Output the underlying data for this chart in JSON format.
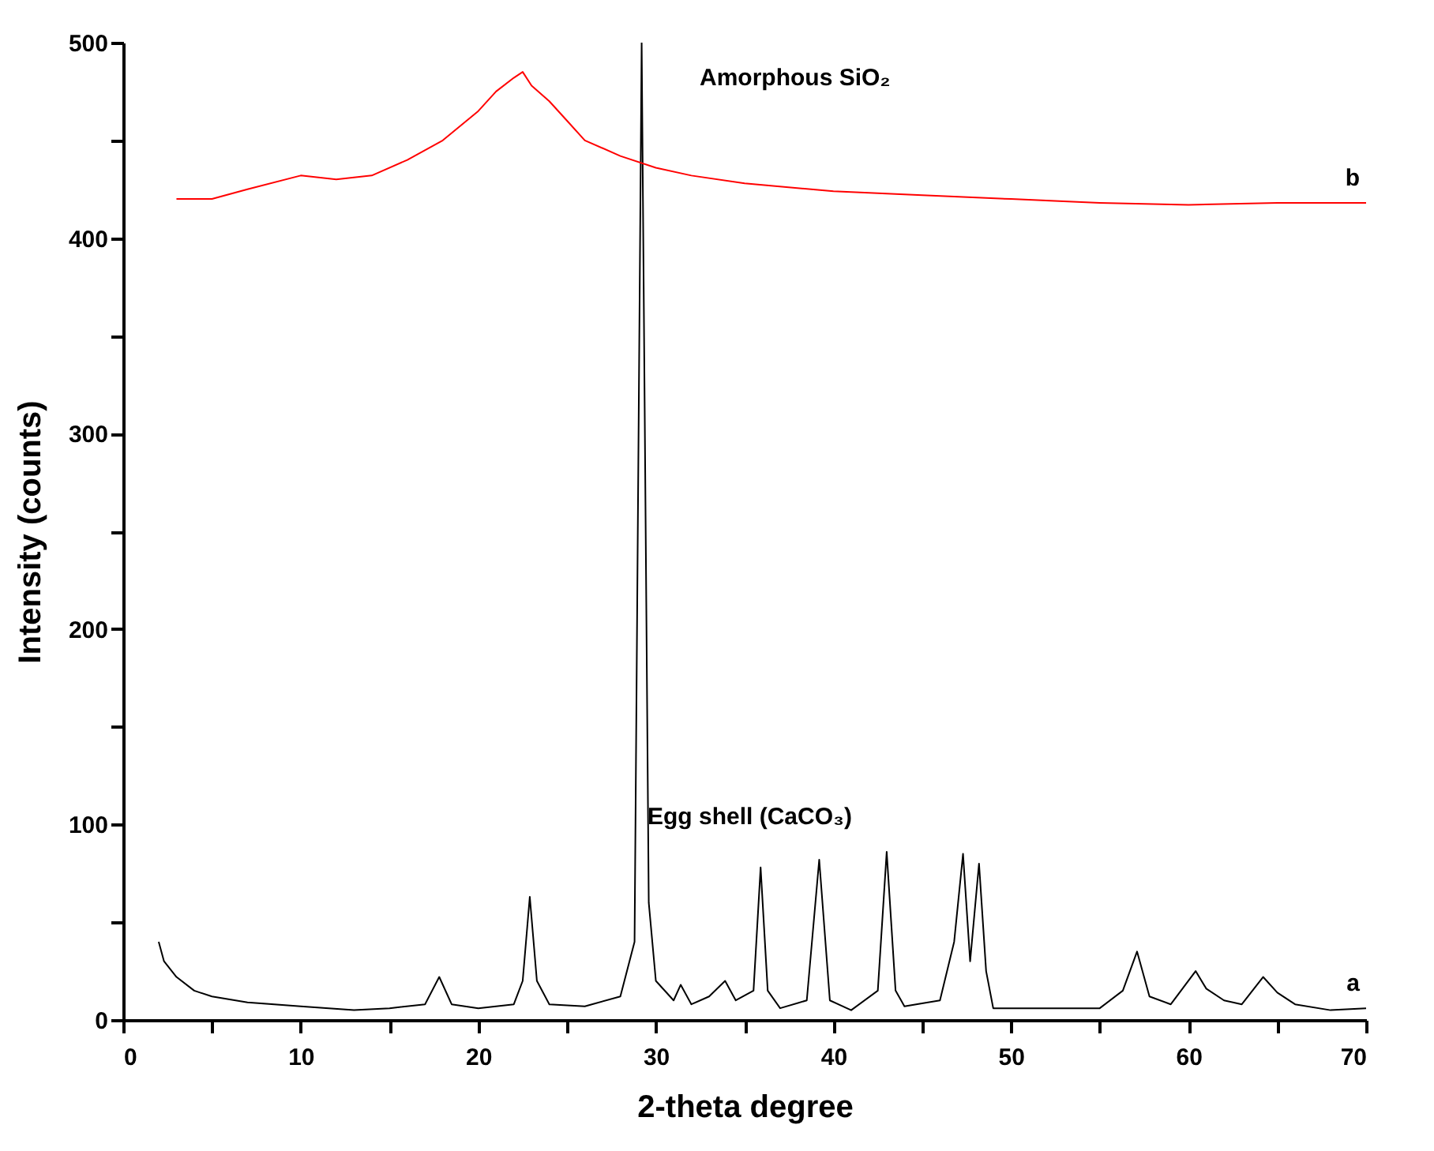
{
  "chart_data": {
    "type": "line",
    "xlabel": "2-theta degree",
    "ylabel": "Intensity (counts)",
    "xlim": [
      0,
      70
    ],
    "ylim": [
      0,
      500
    ],
    "xticks": [
      0,
      {
        "value": 5,
        "label": null
      },
      10,
      {
        "value": 15,
        "label": null
      },
      20,
      {
        "value": 25,
        "label": null
      },
      30,
      {
        "value": 35,
        "label": null
      },
      40,
      {
        "value": 45,
        "label": null
      },
      50,
      {
        "value": 55,
        "label": null
      },
      60,
      {
        "value": 65,
        "label": null
      },
      70
    ],
    "yticks": [
      0,
      {
        "value": 50,
        "label": null
      },
      100,
      {
        "value": 150,
        "label": null
      },
      200,
      {
        "value": 250,
        "label": null
      },
      300,
      {
        "value": 350,
        "label": null
      },
      400,
      {
        "value": 450,
        "label": null
      },
      500
    ],
    "grid": false,
    "series": [
      {
        "name": "a",
        "color": "#000000",
        "x": [
          2,
          2.3,
          3,
          4,
          5,
          7,
          10,
          13,
          15,
          17,
          17.8,
          18.5,
          20,
          22,
          22.5,
          22.9,
          23.3,
          24,
          26,
          28,
          28.8,
          29.2,
          29.6,
          30,
          31,
          31.4,
          32,
          33,
          33.9,
          34.5,
          35.5,
          35.9,
          36.3,
          37,
          38.5,
          39.2,
          39.8,
          41,
          42.5,
          43,
          43.5,
          44,
          46,
          46.8,
          47.3,
          47.7,
          48.2,
          48.6,
          49,
          52,
          55,
          56.3,
          57.1,
          57.8,
          59,
          60.4,
          61,
          62,
          63,
          64.2,
          65,
          66,
          68,
          70
        ],
        "values": [
          40,
          30,
          22,
          15,
          12,
          9,
          7,
          5,
          6,
          8,
          22,
          8,
          6,
          8,
          20,
          63,
          20,
          8,
          7,
          12,
          40,
          500,
          60,
          20,
          10,
          18,
          8,
          12,
          20,
          10,
          15,
          78,
          15,
          6,
          10,
          82,
          10,
          5,
          15,
          86,
          15,
          7,
          10,
          40,
          85,
          30,
          80,
          25,
          6,
          6,
          6,
          15,
          35,
          12,
          8,
          25,
          16,
          10,
          8,
          22,
          14,
          8,
          5,
          6
        ]
      },
      {
        "name": "b",
        "color": "#ff0000",
        "x": [
          3,
          5,
          7,
          10,
          12,
          14,
          16,
          18,
          20,
          21,
          22,
          22.5,
          23,
          24,
          25,
          26,
          28,
          30,
          32,
          35,
          40,
          45,
          50,
          55,
          60,
          65,
          70
        ],
        "values": [
          420,
          420,
          425,
          432,
          430,
          432,
          440,
          450,
          465,
          475,
          482,
          485,
          478,
          470,
          460,
          450,
          442,
          436,
          432,
          428,
          424,
          422,
          420,
          418,
          417,
          418,
          418
        ]
      }
    ],
    "annotations": [
      "Amorphous SiO₂",
      "Egg shell (CaCO₃)"
    ]
  }
}
